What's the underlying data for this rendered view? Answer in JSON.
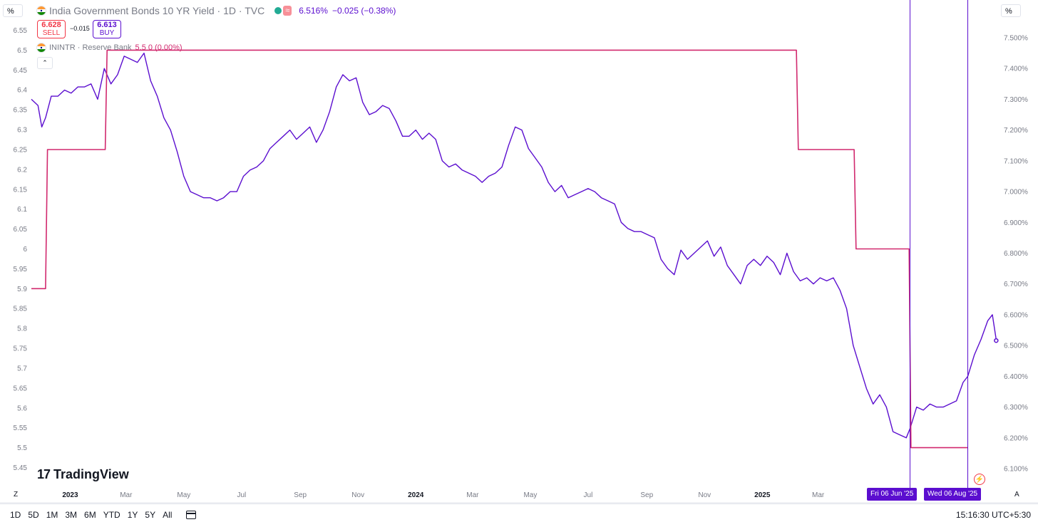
{
  "header": {
    "title": "India Government Bonds 10 YR Yield · 1D · TVC",
    "approx_badge": "≈",
    "last_price": "6.516%",
    "change": "−0.025 (−0.38%)",
    "sell": {
      "price": "6.628",
      "label": "SELL"
    },
    "spread": "−0.015",
    "buy": {
      "price": "6.613",
      "label": "BUY"
    },
    "indicator_name": "ININTR · Reserve Bank",
    "indicator_values": "5.5 0 (0.00%)",
    "collapse_glyph": "⌃",
    "left_unit": "%",
    "right_unit": "%"
  },
  "branding": {
    "logo_mark": "17",
    "logo_text": "TradingView"
  },
  "chart_data": {
    "type": "line",
    "series": [
      {
        "name": "India Government Bonds 10 YR Yield",
        "axis": "right",
        "color": "#5b0ecf",
        "points": [
          [
            "2022-11-21",
            7.3
          ],
          [
            "2022-11-28",
            7.28
          ],
          [
            "2022-12-02",
            7.21
          ],
          [
            "2022-12-06",
            7.24
          ],
          [
            "2022-12-12",
            7.31
          ],
          [
            "2022-12-19",
            7.31
          ],
          [
            "2022-12-26",
            7.33
          ],
          [
            "2023-01-02",
            7.32
          ],
          [
            "2023-01-09",
            7.34
          ],
          [
            "2023-01-16",
            7.34
          ],
          [
            "2023-01-23",
            7.35
          ],
          [
            "2023-01-30",
            7.3
          ],
          [
            "2023-02-06",
            7.4
          ],
          [
            "2023-02-13",
            7.35
          ],
          [
            "2023-02-20",
            7.38
          ],
          [
            "2023-02-27",
            7.44
          ],
          [
            "2023-03-06",
            7.43
          ],
          [
            "2023-03-13",
            7.42
          ],
          [
            "2023-03-20",
            7.45
          ],
          [
            "2023-03-27",
            7.36
          ],
          [
            "2023-04-03",
            7.31
          ],
          [
            "2023-04-10",
            7.24
          ],
          [
            "2023-04-17",
            7.2
          ],
          [
            "2023-04-24",
            7.13
          ],
          [
            "2023-05-01",
            7.05
          ],
          [
            "2023-05-08",
            7.0
          ],
          [
            "2023-05-15",
            6.99
          ],
          [
            "2023-05-22",
            6.98
          ],
          [
            "2023-05-29",
            6.98
          ],
          [
            "2023-06-05",
            6.97
          ],
          [
            "2023-06-12",
            6.98
          ],
          [
            "2023-06-19",
            7.0
          ],
          [
            "2023-06-26",
            7.0
          ],
          [
            "2023-07-03",
            7.05
          ],
          [
            "2023-07-10",
            7.07
          ],
          [
            "2023-07-17",
            7.08
          ],
          [
            "2023-07-24",
            7.1
          ],
          [
            "2023-07-31",
            7.14
          ],
          [
            "2023-08-07",
            7.16
          ],
          [
            "2023-08-14",
            7.18
          ],
          [
            "2023-08-21",
            7.2
          ],
          [
            "2023-08-28",
            7.17
          ],
          [
            "2023-09-04",
            7.19
          ],
          [
            "2023-09-11",
            7.21
          ],
          [
            "2023-09-18",
            7.16
          ],
          [
            "2023-09-25",
            7.2
          ],
          [
            "2023-10-02",
            7.26
          ],
          [
            "2023-10-09",
            7.34
          ],
          [
            "2023-10-16",
            7.38
          ],
          [
            "2023-10-23",
            7.36
          ],
          [
            "2023-10-30",
            7.37
          ],
          [
            "2023-11-06",
            7.29
          ],
          [
            "2023-11-13",
            7.25
          ],
          [
            "2023-11-20",
            7.26
          ],
          [
            "2023-11-27",
            7.28
          ],
          [
            "2023-12-04",
            7.27
          ],
          [
            "2023-12-11",
            7.23
          ],
          [
            "2023-12-18",
            7.18
          ],
          [
            "2023-12-25",
            7.18
          ],
          [
            "2024-01-01",
            7.2
          ],
          [
            "2024-01-08",
            7.17
          ],
          [
            "2024-01-15",
            7.19
          ],
          [
            "2024-01-22",
            7.17
          ],
          [
            "2024-01-29",
            7.1
          ],
          [
            "2024-02-05",
            7.08
          ],
          [
            "2024-02-12",
            7.09
          ],
          [
            "2024-02-19",
            7.07
          ],
          [
            "2024-02-26",
            7.06
          ],
          [
            "2024-03-04",
            7.05
          ],
          [
            "2024-03-11",
            7.03
          ],
          [
            "2024-03-18",
            7.05
          ],
          [
            "2024-03-25",
            7.06
          ],
          [
            "2024-04-01",
            7.08
          ],
          [
            "2024-04-08",
            7.15
          ],
          [
            "2024-04-15",
            7.21
          ],
          [
            "2024-04-22",
            7.2
          ],
          [
            "2024-04-29",
            7.14
          ],
          [
            "2024-05-06",
            7.11
          ],
          [
            "2024-05-13",
            7.08
          ],
          [
            "2024-05-20",
            7.03
          ],
          [
            "2024-05-27",
            7.0
          ],
          [
            "2024-06-03",
            7.02
          ],
          [
            "2024-06-10",
            6.98
          ],
          [
            "2024-06-17",
            6.99
          ],
          [
            "2024-06-24",
            7.0
          ],
          [
            "2024-07-01",
            7.01
          ],
          [
            "2024-07-08",
            7.0
          ],
          [
            "2024-07-15",
            6.98
          ],
          [
            "2024-07-22",
            6.97
          ],
          [
            "2024-07-29",
            6.96
          ],
          [
            "2024-08-05",
            6.9
          ],
          [
            "2024-08-12",
            6.88
          ],
          [
            "2024-08-19",
            6.87
          ],
          [
            "2024-08-26",
            6.87
          ],
          [
            "2024-09-02",
            6.86
          ],
          [
            "2024-09-09",
            6.85
          ],
          [
            "2024-09-16",
            6.78
          ],
          [
            "2024-09-23",
            6.75
          ],
          [
            "2024-09-30",
            6.73
          ],
          [
            "2024-10-07",
            6.81
          ],
          [
            "2024-10-14",
            6.78
          ],
          [
            "2024-10-21",
            6.8
          ],
          [
            "2024-10-28",
            6.82
          ],
          [
            "2024-11-04",
            6.84
          ],
          [
            "2024-11-11",
            6.79
          ],
          [
            "2024-11-18",
            6.82
          ],
          [
            "2024-11-25",
            6.76
          ],
          [
            "2024-12-02",
            6.73
          ],
          [
            "2024-12-09",
            6.7
          ],
          [
            "2024-12-16",
            6.76
          ],
          [
            "2024-12-23",
            6.78
          ],
          [
            "2024-12-30",
            6.76
          ],
          [
            "2025-01-06",
            6.79
          ],
          [
            "2025-01-13",
            6.77
          ],
          [
            "2025-01-20",
            6.73
          ],
          [
            "2025-01-27",
            6.8
          ],
          [
            "2025-02-03",
            6.74
          ],
          [
            "2025-02-10",
            6.71
          ],
          [
            "2025-02-17",
            6.72
          ],
          [
            "2025-02-24",
            6.7
          ],
          [
            "2025-03-03",
            6.72
          ],
          [
            "2025-03-10",
            6.71
          ],
          [
            "2025-03-17",
            6.72
          ],
          [
            "2025-03-24",
            6.68
          ],
          [
            "2025-03-31",
            6.62
          ],
          [
            "2025-04-07",
            6.5
          ],
          [
            "2025-04-14",
            6.43
          ],
          [
            "2025-04-21",
            6.36
          ],
          [
            "2025-04-28",
            6.31
          ],
          [
            "2025-05-05",
            6.34
          ],
          [
            "2025-05-12",
            6.3
          ],
          [
            "2025-05-19",
            6.22
          ],
          [
            "2025-05-26",
            6.21
          ],
          [
            "2025-06-02",
            6.2
          ],
          [
            "2025-06-06",
            6.23
          ],
          [
            "2025-06-13",
            6.3
          ],
          [
            "2025-06-20",
            6.29
          ],
          [
            "2025-06-27",
            6.31
          ],
          [
            "2025-07-04",
            6.3
          ],
          [
            "2025-07-11",
            6.3
          ],
          [
            "2025-07-18",
            6.31
          ],
          [
            "2025-07-25",
            6.32
          ],
          [
            "2025-08-01",
            6.38
          ],
          [
            "2025-08-06",
            6.4
          ],
          [
            "2025-08-13",
            6.47
          ],
          [
            "2025-08-20",
            6.52
          ],
          [
            "2025-08-27",
            6.58
          ],
          [
            "2025-09-01",
            6.6
          ],
          [
            "2025-09-05",
            6.52
          ]
        ],
        "last": 6.516
      },
      {
        "name": "ININTR · Reserve Bank",
        "axis": "left",
        "color": "#d1296e",
        "points": [
          [
            "2022-11-21",
            5.9
          ],
          [
            "2022-12-06",
            5.9
          ],
          [
            "2022-12-08",
            6.25
          ],
          [
            "2023-02-07",
            6.25
          ],
          [
            "2023-02-09",
            6.5
          ],
          [
            "2025-02-06",
            6.5
          ],
          [
            "2025-02-08",
            6.25
          ],
          [
            "2025-04-08",
            6.25
          ],
          [
            "2025-04-10",
            6.0
          ],
          [
            "2025-06-05",
            6.0
          ],
          [
            "2025-06-07",
            5.5
          ],
          [
            "2025-08-06",
            5.5
          ]
        ]
      }
    ],
    "left_axis": {
      "ylim": [
        5.45,
        6.55
      ],
      "ticks": [
        "6.55",
        "6.5",
        "6.45",
        "6.4",
        "6.35",
        "6.3",
        "6.25",
        "6.2",
        "6.15",
        "6.1",
        "6.05",
        "6",
        "5.95",
        "5.9",
        "5.85",
        "5.8",
        "5.75",
        "5.7",
        "5.65",
        "5.6",
        "5.55",
        "5.5",
        "5.45"
      ]
    },
    "right_axis": {
      "ylim": [
        6.1,
        7.5
      ],
      "ticks": [
        "7.500%",
        "7.400%",
        "7.300%",
        "7.200%",
        "7.100%",
        "7.000%",
        "6.900%",
        "6.800%",
        "6.700%",
        "6.600%",
        "6.500%",
        "6.400%",
        "6.300%",
        "6.200%",
        "6.100%"
      ]
    },
    "xlim": [
      "2022-11-21",
      "2025-09-07"
    ],
    "x_ticks": [
      [
        "2023-01-01",
        "2023"
      ],
      [
        "2023-03-01",
        "Mar"
      ],
      [
        "2023-05-01",
        "May"
      ],
      [
        "2023-07-01",
        "Jul"
      ],
      [
        "2023-09-01",
        "Sep"
      ],
      [
        "2023-11-01",
        "Nov"
      ],
      [
        "2024-01-01",
        "2024"
      ],
      [
        "2024-03-01",
        "Mar"
      ],
      [
        "2024-05-01",
        "May"
      ],
      [
        "2024-07-01",
        "Jul"
      ],
      [
        "2024-09-01",
        "Sep"
      ],
      [
        "2024-11-01",
        "Nov"
      ],
      [
        "2025-01-01",
        "2025"
      ],
      [
        "2025-03-01",
        "Mar"
      ],
      [
        "2025-05-01",
        "May"
      ]
    ],
    "vertical_markers": [
      {
        "date": "2025-06-06",
        "label": "Fri 06 Jun '25"
      },
      {
        "date": "2025-08-06",
        "label": "Wed 06 Aug '25"
      }
    ],
    "corner_labels": {
      "left": "Z",
      "right": "A"
    }
  },
  "toolbar": {
    "ranges": [
      "1D",
      "5D",
      "1M",
      "3M",
      "6M",
      "YTD",
      "1Y",
      "5Y",
      "All"
    ],
    "clock": "15:16:30 UTC+5:30"
  }
}
